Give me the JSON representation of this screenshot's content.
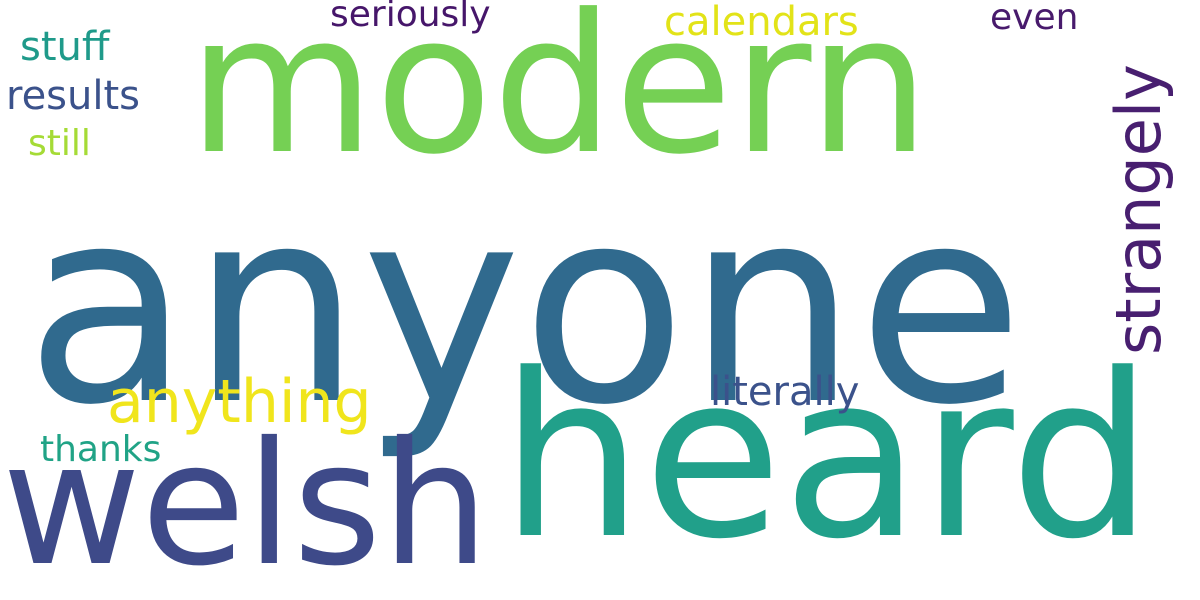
{
  "words": {
    "anyone": {
      "text": "anyone",
      "color": "#306a8e"
    },
    "heard": {
      "text": "heard",
      "color": "#21a08a"
    },
    "modern": {
      "text": "modern",
      "color": "#75d054"
    },
    "welsh": {
      "text": "welsh",
      "color": "#3e4a89"
    },
    "strangely": {
      "text": "strangely",
      "color": "#481f70"
    },
    "anything": {
      "text": "anything",
      "color": "#f0e51c"
    },
    "calendars": {
      "text": "calendars",
      "color": "#e2e318"
    },
    "literally": {
      "text": "literally",
      "color": "#3b528b"
    },
    "results": {
      "text": "results",
      "color": "#3b528b"
    },
    "stuff": {
      "text": "stuff",
      "color": "#1f9a8a"
    },
    "seriously": {
      "text": "seriously",
      "color": "#46166a"
    },
    "even": {
      "text": "even",
      "color": "#481a6c"
    },
    "still": {
      "text": "still",
      "color": "#a5db36"
    },
    "thanks": {
      "text": "thanks",
      "color": "#20a386"
    }
  }
}
